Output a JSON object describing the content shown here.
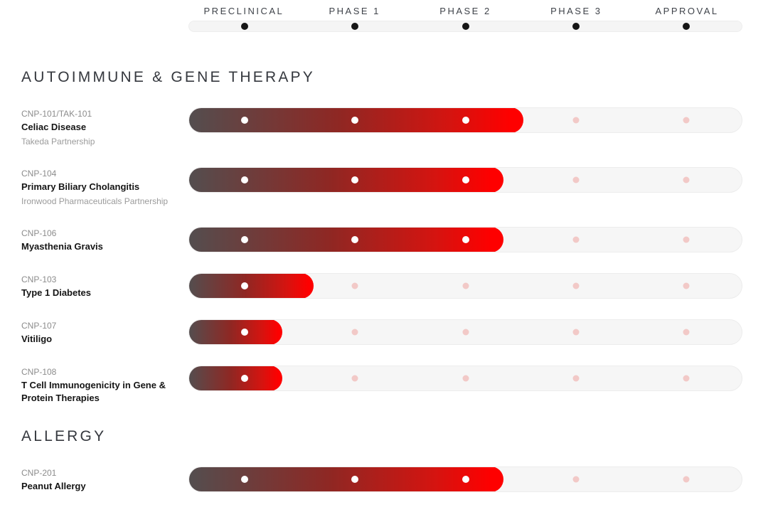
{
  "chart_data": {
    "type": "pipeline",
    "phases": [
      "PRECLINICAL",
      "PHASE 1",
      "PHASE 2",
      "PHASE 3",
      "APPROVAL"
    ],
    "phase_positions_pct": [
      10,
      30,
      50,
      70,
      90
    ],
    "sections": [
      {
        "title": "AUTOIMMUNE & GENE THERAPY",
        "programs": [
          {
            "code": "CNP-101/TAK-101",
            "name": "Celiac Disease",
            "partner": "Takeda Partnership",
            "current_phase": "PHASE 2",
            "progress_pct": 60.6,
            "phases_reached": 3
          },
          {
            "code": "CNP-104",
            "name": "Primary Biliary Cholangitis",
            "partner": "Ironwood Pharmaceuticals Partnership",
            "current_phase": "PHASE 2",
            "progress_pct": 57,
            "phases_reached": 3
          },
          {
            "code": "CNP-106",
            "name": "Myasthenia Gravis",
            "partner": "",
            "current_phase": "PHASE 2",
            "progress_pct": 57,
            "phases_reached": 3
          },
          {
            "code": "CNP-103",
            "name": "Type 1 Diabetes",
            "partner": "",
            "current_phase": "PRECLINICAL",
            "progress_pct": 22.6,
            "phases_reached": 1
          },
          {
            "code": "CNP-107",
            "name": "Vitiligo",
            "partner": "",
            "current_phase": "PRECLINICAL",
            "progress_pct": 17,
            "phases_reached": 1
          },
          {
            "code": "CNP-108",
            "name": "T Cell Immunogenicity in Gene & Protein Therapies",
            "partner": "",
            "current_phase": "PRECLINICAL",
            "progress_pct": 17,
            "phases_reached": 1
          }
        ]
      },
      {
        "title": "ALLERGY",
        "programs": [
          {
            "code": "CNP-201",
            "name": "Peanut Allergy",
            "partner": "",
            "current_phase": "PHASE 2",
            "progress_pct": 57,
            "phases_reached": 3
          }
        ]
      }
    ]
  },
  "colors": {
    "bar_gradient_start": "#534e4f",
    "bar_gradient_mid": "#9c2722",
    "bar_gradient_end": "#fe0000",
    "track_background": "#f6f6f6",
    "track_border": "#ececec",
    "reached_dot": "#ffffff",
    "unreached_dot": "#f2c9c7",
    "header_dot": "#161616",
    "phase_label_text": "#3f434a",
    "section_title_text": "#35383e",
    "program_code_text": "#8c8c8c",
    "program_name_text": "#151515",
    "partner_text": "#9b9b9b"
  }
}
